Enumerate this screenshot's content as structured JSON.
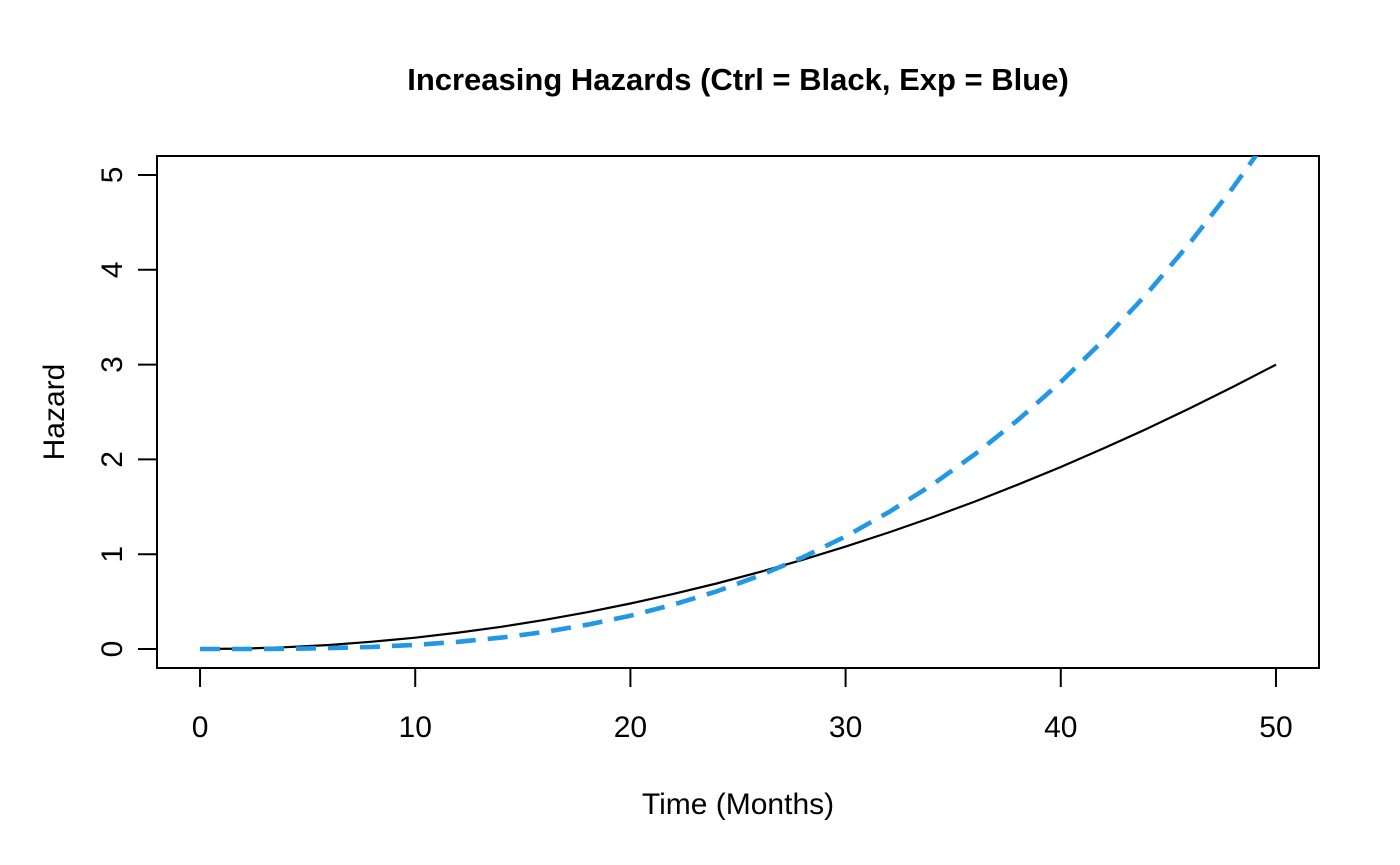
{
  "figure": {
    "background": "#FFFFFF",
    "foreground": "#000000"
  },
  "chart_data": {
    "type": "line",
    "title": "Increasing Hazards (Ctrl = Black, Exp = Blue)",
    "xlabel": "Time (Months)",
    "ylabel": "Hazard",
    "xlim": [
      0,
      50
    ],
    "ylim": [
      0,
      5
    ],
    "x_ticks": [
      0,
      10,
      20,
      30,
      40,
      50
    ],
    "y_ticks": [
      0,
      1,
      2,
      3,
      4,
      5
    ],
    "grid": false,
    "legend_position": "none (groups identified in title: Ctrl = Black, Exp = Blue)",
    "axis_expansion_fraction": 0.04,
    "x": [
      0,
      2,
      4,
      6,
      8,
      10,
      12,
      14,
      16,
      18,
      20,
      22,
      24,
      26,
      28,
      30,
      32,
      34,
      36,
      38,
      40,
      42,
      44,
      46,
      48,
      50
    ],
    "series": [
      {
        "name": "Control hazard (Ctrl)",
        "color": "#000000",
        "style": "solid",
        "line_width": 2.2,
        "values": [
          0,
          0.005,
          0.019,
          0.043,
          0.077,
          0.12,
          0.173,
          0.235,
          0.307,
          0.389,
          0.48,
          0.581,
          0.691,
          0.811,
          0.941,
          1.08,
          1.229,
          1.387,
          1.555,
          1.733,
          1.92,
          2.117,
          2.323,
          2.539,
          2.765,
          3.0
        ]
      },
      {
        "name": "Experimental hazard (Exp)",
        "color": "#2297E6",
        "style": "dashed",
        "dash_pattern": [
          20,
          12
        ],
        "line_width": 4.6,
        "values": [
          0,
          0,
          0.003,
          0.01,
          0.023,
          0.044,
          0.076,
          0.121,
          0.18,
          0.257,
          0.352,
          0.469,
          0.608,
          0.773,
          0.966,
          1.188,
          1.442,
          1.729,
          2.053,
          2.414,
          2.816,
          3.26,
          3.748,
          4.283,
          4.866,
          5.5
        ]
      }
    ],
    "annotations": {
      "crossing_point_approx": {
        "x": 28,
        "y": 0.95
      },
      "note": "Blue dashed curve is clipped by the top of the plot box just before x = 50"
    }
  }
}
